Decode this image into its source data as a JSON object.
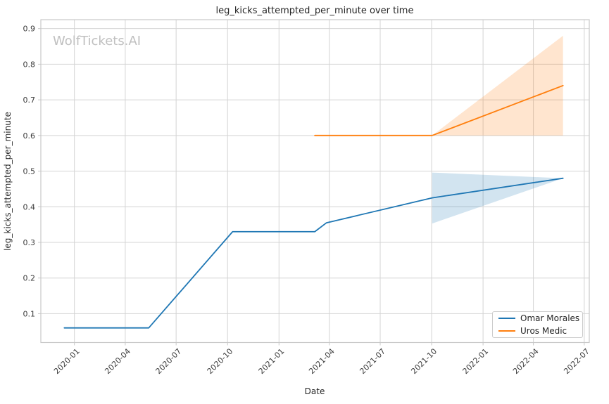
{
  "chart_data": {
    "type": "line",
    "title": "leg_kicks_attempted_per_minute over time",
    "xlabel": "Date",
    "ylabel": "leg_kicks_attempted_per_minute",
    "watermark": "WolfTickets.AI",
    "grid": true,
    "legend_position": "lower right",
    "xlim": [
      "2019-11-02",
      "2022-07-10"
    ],
    "ylim": [
      0.019,
      0.925
    ],
    "x_ticks": [
      {
        "date": "2020-01-01",
        "label": "2020-01"
      },
      {
        "date": "2020-04-01",
        "label": "2020-04"
      },
      {
        "date": "2020-07-01",
        "label": "2020-07"
      },
      {
        "date": "2020-10-01",
        "label": "2020-10"
      },
      {
        "date": "2021-01-01",
        "label": "2021-01"
      },
      {
        "date": "2021-04-01",
        "label": "2021-04"
      },
      {
        "date": "2021-07-01",
        "label": "2021-07"
      },
      {
        "date": "2021-10-01",
        "label": "2021-10"
      },
      {
        "date": "2022-01-01",
        "label": "2022-01"
      },
      {
        "date": "2022-04-01",
        "label": "2022-04"
      },
      {
        "date": "2022-07-01",
        "label": "2022-07"
      }
    ],
    "y_ticks": [
      0.1,
      0.2,
      0.3,
      0.4,
      0.5,
      0.6,
      0.7,
      0.8,
      0.9
    ],
    "series": [
      {
        "name": "Omar Morales",
        "color": "#1f77b4",
        "band_opacity": 0.2,
        "points": [
          {
            "date": "2019-12-14",
            "value": 0.06
          },
          {
            "date": "2020-05-13",
            "value": 0.06
          },
          {
            "date": "2020-10-10",
            "value": 0.33
          },
          {
            "date": "2021-03-06",
            "value": 0.33
          },
          {
            "date": "2021-03-27",
            "value": 0.355
          },
          {
            "date": "2021-10-02",
            "value": 0.425
          },
          {
            "date": "2022-05-24",
            "value": 0.48
          }
        ],
        "band": [
          {
            "date": "2021-10-02",
            "lo": 0.353,
            "hi": 0.496
          },
          {
            "date": "2022-05-24",
            "lo": 0.48,
            "hi": 0.48
          }
        ]
      },
      {
        "name": "Uros Medic",
        "color": "#ff7f0e",
        "band_opacity": 0.2,
        "points": [
          {
            "date": "2021-03-06",
            "value": 0.6
          },
          {
            "date": "2021-10-02",
            "value": 0.6
          },
          {
            "date": "2022-05-24",
            "value": 0.74
          }
        ],
        "band": [
          {
            "date": "2021-10-02",
            "lo": 0.6,
            "hi": 0.6
          },
          {
            "date": "2022-05-24",
            "lo": 0.6,
            "hi": 0.88
          }
        ]
      }
    ]
  }
}
